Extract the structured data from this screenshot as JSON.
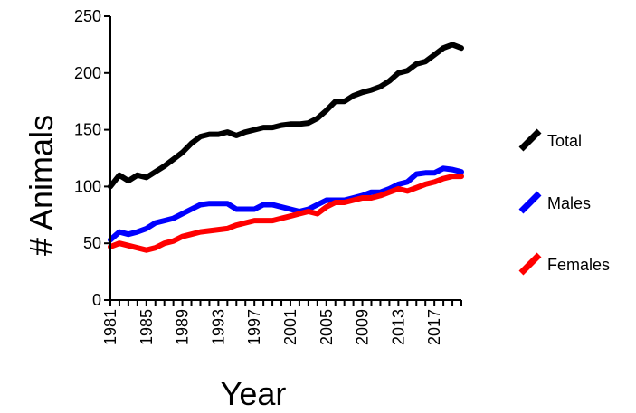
{
  "chart_data": {
    "type": "line",
    "xlabel": "Year",
    "ylabel": "# Animals",
    "xlim": [
      1981,
      2020
    ],
    "ylim": [
      0,
      250
    ],
    "y_ticks": [
      0,
      50,
      100,
      150,
      200,
      250
    ],
    "x_tick_labels": [
      "1981",
      "1985",
      "1989",
      "1993",
      "1997",
      "2001",
      "2005",
      "2009",
      "2013",
      "2017"
    ],
    "grid": false,
    "legend_position": "right",
    "x": [
      1981,
      1982,
      1983,
      1984,
      1985,
      1986,
      1987,
      1988,
      1989,
      1990,
      1991,
      1992,
      1993,
      1994,
      1995,
      1996,
      1997,
      1998,
      1999,
      2000,
      2001,
      2002,
      2003,
      2004,
      2005,
      2006,
      2007,
      2008,
      2009,
      2010,
      2011,
      2012,
      2013,
      2014,
      2015,
      2016,
      2017,
      2018,
      2019,
      2020
    ],
    "series": [
      {
        "name": "Total",
        "color": "#000000",
        "values": [
          100,
          110,
          105,
          110,
          108,
          113,
          118,
          124,
          130,
          138,
          144,
          146,
          146,
          148,
          145,
          148,
          150,
          152,
          152,
          154,
          155,
          155,
          156,
          160,
          167,
          175,
          175,
          180,
          183,
          185,
          188,
          193,
          200,
          202,
          208,
          210,
          216,
          222,
          225,
          222
        ]
      },
      {
        "name": "Males",
        "color": "#0000ff",
        "values": [
          53,
          60,
          58,
          60,
          63,
          68,
          70,
          72,
          76,
          80,
          84,
          85,
          85,
          85,
          80,
          80,
          80,
          84,
          84,
          82,
          80,
          78,
          80,
          84,
          88,
          88,
          88,
          90,
          92,
          95,
          95,
          98,
          102,
          104,
          111,
          112,
          112,
          116,
          115,
          113
        ]
      },
      {
        "name": "Females",
        "color": "#ff0000",
        "values": [
          47,
          50,
          48,
          46,
          44,
          46,
          50,
          52,
          56,
          58,
          60,
          61,
          62,
          63,
          66,
          68,
          70,
          70,
          70,
          72,
          74,
          76,
          78,
          76,
          82,
          86,
          86,
          88,
          90,
          90,
          92,
          95,
          98,
          96,
          99,
          102,
          104,
          107,
          109,
          109
        ]
      }
    ]
  }
}
